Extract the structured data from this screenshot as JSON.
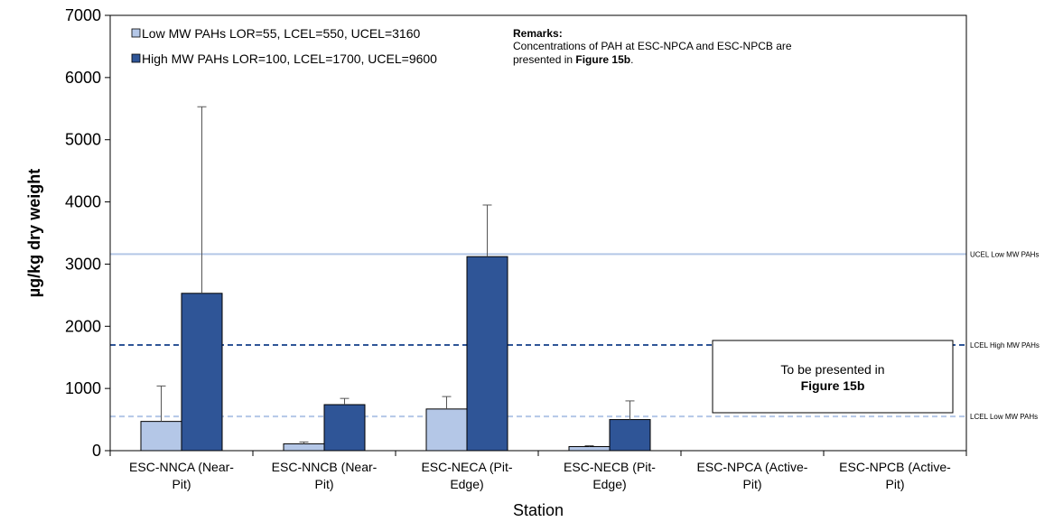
{
  "chart_data": {
    "type": "bar",
    "title": "",
    "xlabel": "Station",
    "ylabel": "µg/kg dry weight",
    "ylim": [
      0,
      7000
    ],
    "yticks": [
      0,
      1000,
      2000,
      3000,
      4000,
      5000,
      6000,
      7000
    ],
    "grid": false,
    "categories": [
      [
        "ESC-NNCA (Near-",
        "Pit)"
      ],
      [
        "ESC-NNCB (Near-",
        "Pit)"
      ],
      [
        "ESC-NECA (Pit-",
        "Edge)"
      ],
      [
        "ESC-NECB (Pit-",
        "Edge)"
      ],
      [
        "ESC-NPCA (Active-",
        "Pit)"
      ],
      [
        "ESC-NPCB (Active-",
        "Pit)"
      ]
    ],
    "series": [
      {
        "name": "Low MW PAHs LOR=55, LCEL=550, UCEL=3160",
        "color": "#b4c7e7",
        "values": [
          470,
          110,
          670,
          65,
          null,
          null
        ],
        "error_upper": [
          1040,
          140,
          870,
          80,
          null,
          null
        ]
      },
      {
        "name": "High MW PAHs LOR=100, LCEL=1700, UCEL=9600",
        "color": "#2f5597",
        "values": [
          2530,
          740,
          3120,
          500,
          null,
          null
        ],
        "error_upper": [
          5530,
          840,
          3950,
          800,
          null,
          null
        ]
      }
    ],
    "reference_lines": [
      {
        "label": "UCEL Low MW PAHs",
        "value": 3160,
        "color": "#b4c7e7",
        "style": "solid"
      },
      {
        "label": "LCEL High MW PAHs",
        "value": 1700,
        "color": "#2f5597",
        "style": "dashed"
      },
      {
        "label": "LCEL Low MW PAHs",
        "value": 550,
        "color": "#b4c7e7",
        "style": "dashed"
      }
    ],
    "legend_position": "top-left",
    "remarks": {
      "heading": "Remarks:",
      "line1": "Concentrations of PAH at ESC-NPCA and ESC-NPCB are",
      "line2_prefix": "presented in ",
      "line2_bold": "Figure 15b",
      "line2_suffix": "."
    },
    "placeholder_box": {
      "line1": "To be presented in",
      "line2": "Figure 15b"
    }
  }
}
